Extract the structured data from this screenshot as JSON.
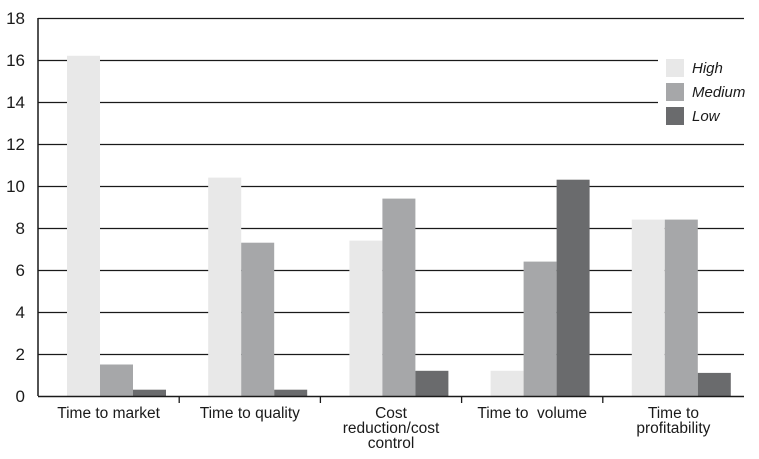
{
  "chart_data": {
    "type": "bar",
    "title": "",
    "xlabel": "",
    "ylabel": "",
    "ylim": [
      0,
      18
    ],
    "yticks": [
      0,
      2,
      4,
      6,
      8,
      10,
      12,
      14,
      16,
      18
    ],
    "grid": "horizontal",
    "legend_position": "top-right",
    "categories": [
      [
        "Time to market"
      ],
      [
        "Time to quality"
      ],
      [
        "Cost",
        "reduction/cost",
        "control"
      ],
      [
        "Time to  volume"
      ],
      [
        "Time to",
        "profitability"
      ]
    ],
    "series": [
      {
        "name": "High",
        "color": "#e8e8e8",
        "values": [
          16.2,
          10.4,
          7.4,
          1.2,
          8.4
        ]
      },
      {
        "name": "Medium",
        "color": "#a6a7a9",
        "values": [
          1.5,
          7.3,
          9.4,
          6.4,
          8.4
        ]
      },
      {
        "name": "Low",
        "color": "#6a6b6d",
        "values": [
          0.3,
          0.3,
          1.2,
          10.3,
          1.1
        ]
      }
    ]
  }
}
